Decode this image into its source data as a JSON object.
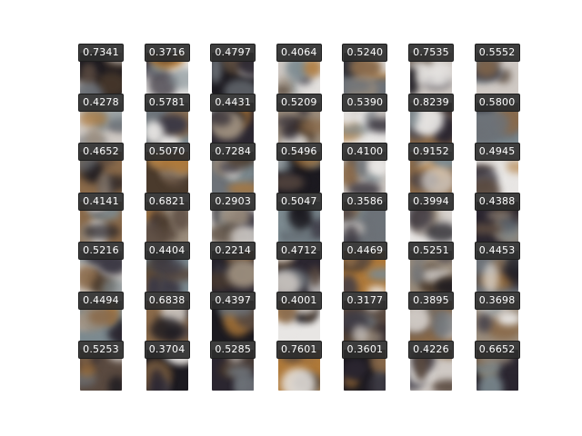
{
  "scores": [
    [
      "0.7341",
      "0.3716",
      "0.4797",
      "0.4064",
      "0.5240",
      "0.7535",
      "0.5552"
    ],
    [
      "0.4278",
      "0.5781",
      "0.4431",
      "0.5209",
      "0.5390",
      "0.8239",
      "0.5800"
    ],
    [
      "0.4652",
      "0.5070",
      "0.7284",
      "0.5496",
      "0.4100",
      "0.9152",
      "0.4945"
    ],
    [
      "0.4141",
      "0.6821",
      "0.2903",
      "0.5047",
      "0.3586",
      "0.3994",
      "0.4388"
    ],
    [
      "0.5216",
      "0.4404",
      "0.2214",
      "0.4712",
      "0.4469",
      "0.5251",
      "0.4453"
    ],
    [
      "0.4494",
      "0.6838",
      "0.4397",
      "0.4001",
      "0.3177",
      "0.3895",
      "0.3698"
    ],
    [
      "0.5253",
      "0.3704",
      "0.5285",
      "0.7601",
      "0.3601",
      "0.4226",
      "0.6652"
    ]
  ],
  "palette": [
    "#2b2630",
    "#5a4a40",
    "#8a6a4a",
    "#b07a3a",
    "#cfc9c4",
    "#e8e6e4",
    "#3d3a45",
    "#6d7278",
    "#1c1a20",
    "#9a8c7c",
    "#7c8a90",
    "#4a3a2c"
  ]
}
